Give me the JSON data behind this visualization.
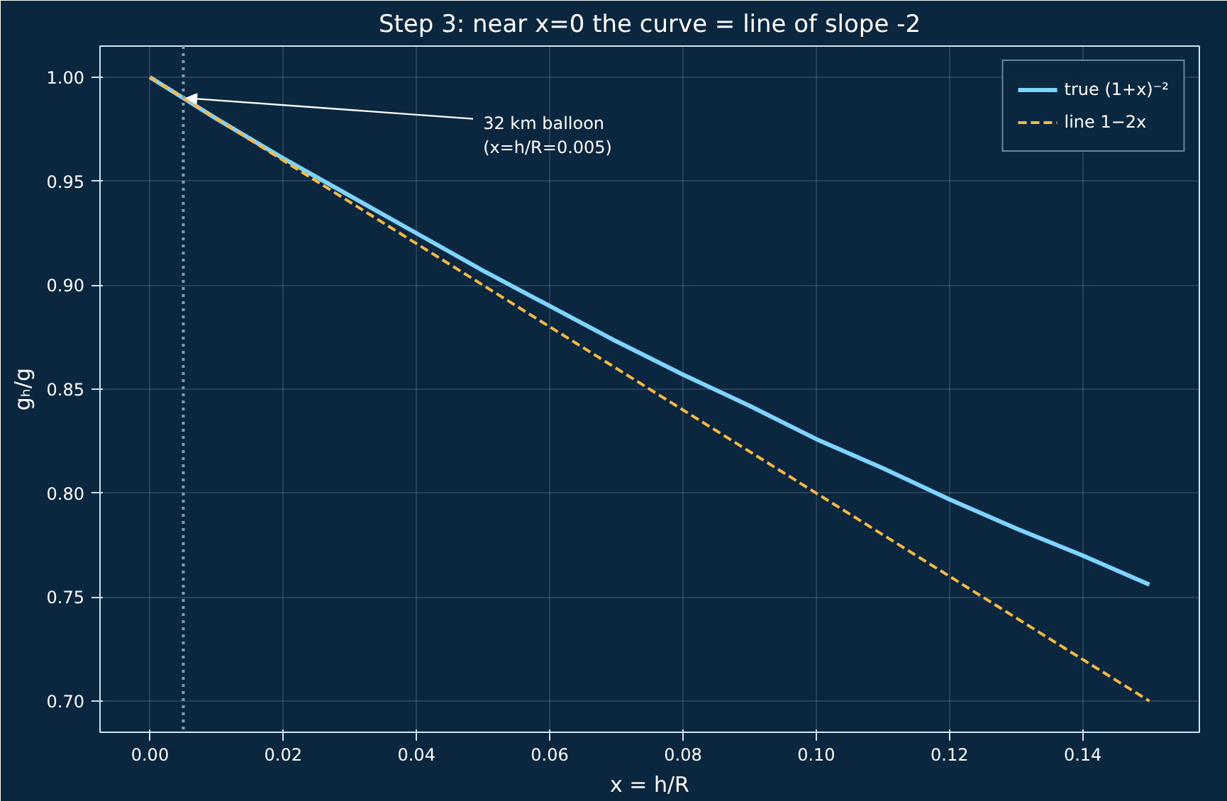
{
  "chart_data": {
    "type": "line",
    "title": "Step 3: near x=0 the curve = line of slope -2",
    "xlabel": "x = h/R",
    "ylabel": "gₕ/g",
    "series": [
      {
        "name": "true (1+x)⁻²",
        "color": "#7fd4ff",
        "line_style": "solid",
        "x": [
          0,
          0.01,
          0.02,
          0.03,
          0.04,
          0.05,
          0.06,
          0.07,
          0.08,
          0.09,
          0.1,
          0.11,
          0.12,
          0.13,
          0.14,
          0.15
        ],
        "values": [
          1.0,
          0.98,
          0.961,
          0.943,
          0.925,
          0.907,
          0.89,
          0.873,
          0.857,
          0.842,
          0.826,
          0.812,
          0.797,
          0.783,
          0.77,
          0.756
        ]
      },
      {
        "name": "line 1−2x",
        "color": "#f5b942",
        "line_style": "dashed",
        "x": [
          0,
          0.15
        ],
        "values": [
          1.0,
          0.7
        ]
      }
    ],
    "ref_lines": [
      {
        "axis": "x",
        "value": 0.005,
        "color": "#7f9fb0",
        "line_style": "dotted"
      }
    ],
    "annotations": [
      {
        "text": "32 km balloon\n(x=h/R=0.005)",
        "x": 0.005,
        "y": 0.99
      }
    ],
    "xlim": [
      -0.0075,
      0.1575
    ],
    "ylim": [
      0.685,
      1.015
    ],
    "xticks": [
      {
        "value": 0,
        "label": "0.00"
      },
      0.02,
      0.04,
      0.06,
      0.08,
      {
        "value": 0.1,
        "label": "0.10"
      },
      0.12,
      0.14
    ],
    "yticks": [
      {
        "value": 0.7,
        "label": "0.70"
      },
      0.75,
      {
        "value": 0.8,
        "label": "0.80"
      },
      0.85,
      {
        "value": 0.9,
        "label": "0.90"
      },
      0.95,
      {
        "value": 1.0,
        "label": "1.00"
      }
    ],
    "grid": true,
    "legend": "top right",
    "marker": "none"
  }
}
